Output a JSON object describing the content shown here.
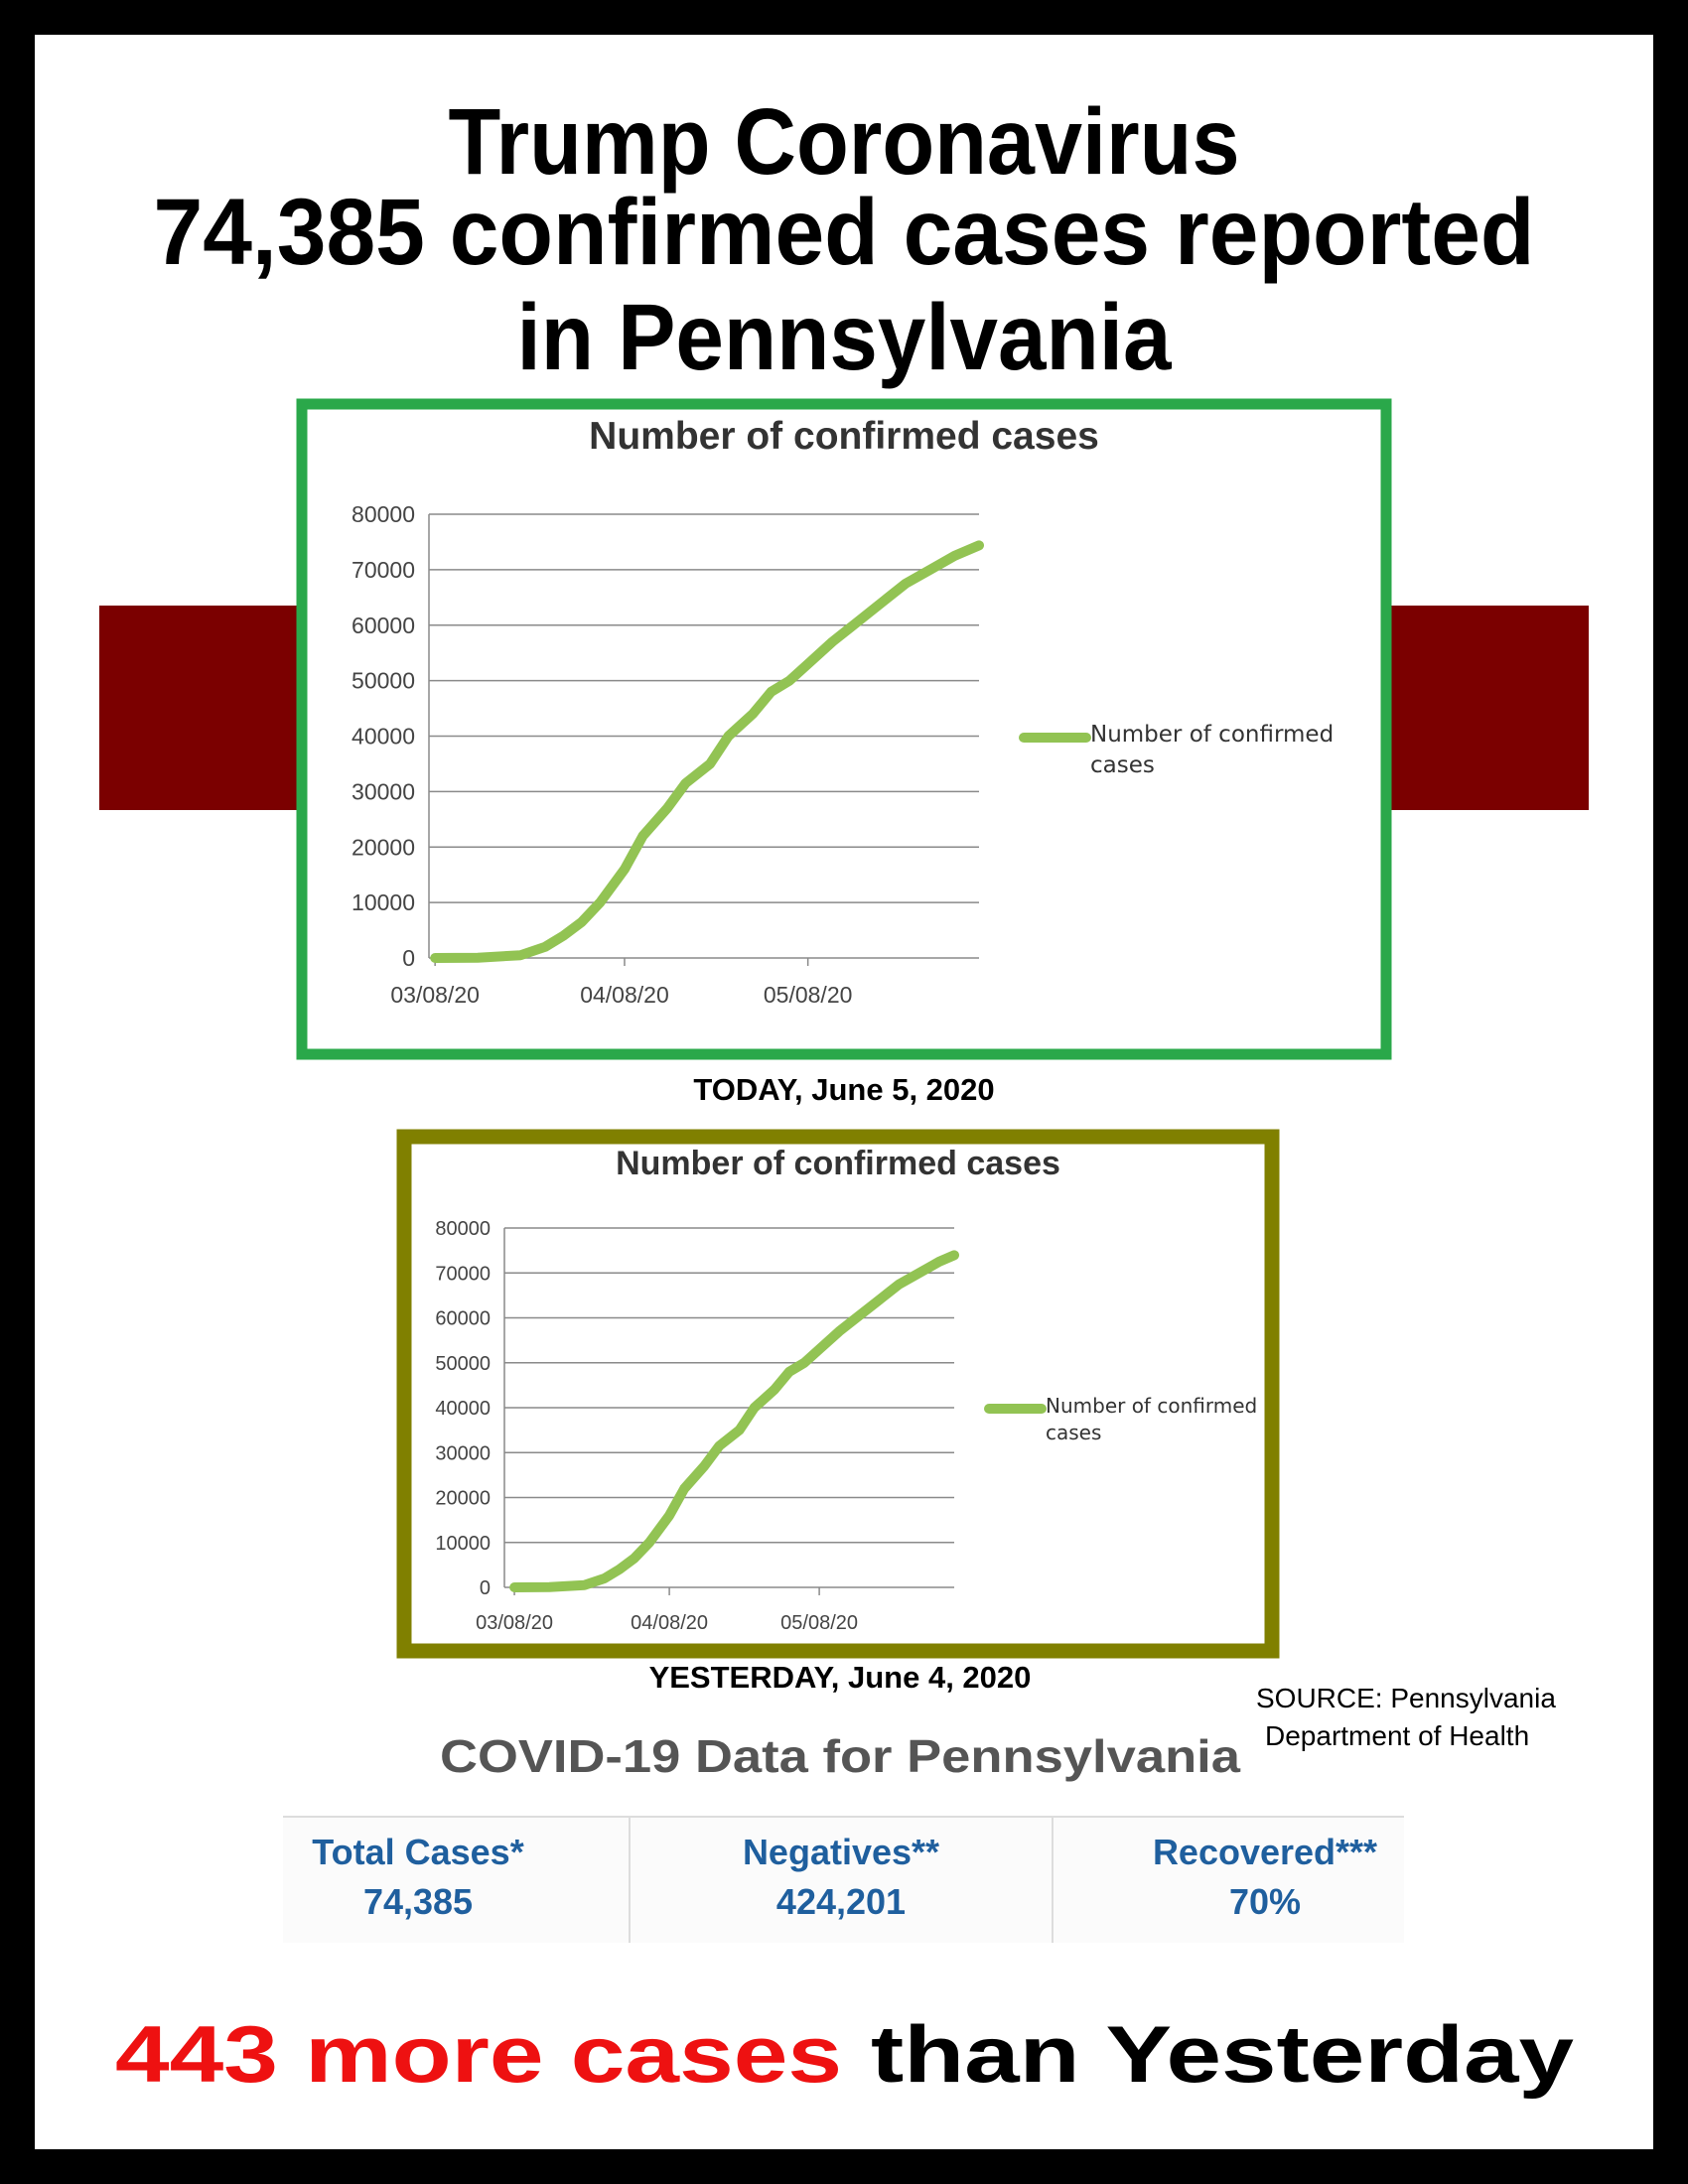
{
  "header": {
    "title_lines": [
      "Trump Coronavirus",
      "74,385 confirmed cases reported",
      "in Pennsylvania"
    ]
  },
  "chart_data": [
    {
      "type": "line",
      "title": "Number of confirmed cases",
      "x": [
        "03/08/20",
        "03/15/20",
        "03/22/20",
        "03/26/20",
        "03/29/20",
        "04/01/20",
        "04/04/20",
        "04/08/20",
        "04/11/20",
        "04/15/20",
        "04/18/20",
        "04/22/20",
        "04/25/20",
        "04/29/20",
        "05/02/20",
        "05/05/20",
        "05/08/20",
        "05/12/20",
        "05/16/20",
        "05/20/20",
        "05/24/20",
        "05/28/20",
        "06/01/20",
        "06/05/20"
      ],
      "series": [
        {
          "name": "Number of confirmed cases",
          "color": "#92c353",
          "values": [
            0,
            50,
            500,
            2000,
            4000,
            6500,
            10000,
            16000,
            22000,
            27000,
            31500,
            35000,
            40000,
            44000,
            48000,
            50000,
            53000,
            57000,
            60500,
            64000,
            67500,
            70000,
            72500,
            74385
          ]
        }
      ],
      "xlim": [
        "03/07/20",
        "06/05/20"
      ],
      "xticks": [
        "03/08/20",
        "04/08/20",
        "05/08/20"
      ],
      "ylim": [
        0,
        80000
      ],
      "yticks": [
        0,
        10000,
        20000,
        30000,
        40000,
        50000,
        60000,
        70000,
        80000
      ],
      "grid": true,
      "legend": "right",
      "frame_color": "#2aa84a"
    },
    {
      "type": "line",
      "title": "Number of confirmed cases",
      "x": [
        "03/08/20",
        "03/15/20",
        "03/22/20",
        "03/26/20",
        "03/29/20",
        "04/01/20",
        "04/04/20",
        "04/08/20",
        "04/11/20",
        "04/15/20",
        "04/18/20",
        "04/22/20",
        "04/25/20",
        "04/29/20",
        "05/02/20",
        "05/05/20",
        "05/08/20",
        "05/12/20",
        "05/16/20",
        "05/20/20",
        "05/24/20",
        "05/28/20",
        "06/01/20",
        "06/04/20"
      ],
      "series": [
        {
          "name": "Number of confirmed cases",
          "color": "#92c353",
          "values": [
            0,
            50,
            500,
            2000,
            4000,
            6500,
            10000,
            16000,
            22000,
            27000,
            31500,
            35000,
            40000,
            44000,
            48000,
            50000,
            53000,
            57000,
            60500,
            64000,
            67500,
            70000,
            72500,
            73942
          ]
        }
      ],
      "xlim": [
        "03/06/20",
        "06/04/20"
      ],
      "xticks": [
        "03/08/20",
        "04/08/20",
        "05/08/20"
      ],
      "ylim": [
        0,
        80000
      ],
      "yticks": [
        0,
        10000,
        20000,
        30000,
        40000,
        50000,
        60000,
        70000,
        80000
      ],
      "grid": true,
      "legend": "right",
      "frame_color": "#808000"
    }
  ],
  "captions": [
    "TODAY, June 5, 2020",
    "YESTERDAY, June 4, 2020"
  ],
  "source": [
    "SOURCE: Pennsylvania",
    "Department of Health"
  ],
  "stats": {
    "title": "COVID-19 Data for Pennsylvania",
    "items": [
      {
        "label": "Total Cases*",
        "value": "74,385"
      },
      {
        "label": "Negatives**",
        "value": "424,201"
      },
      {
        "label": "Recovered***",
        "value": "70%"
      }
    ]
  },
  "footer": {
    "highlight": "443 more cases",
    "rest": "than Yesterday"
  }
}
